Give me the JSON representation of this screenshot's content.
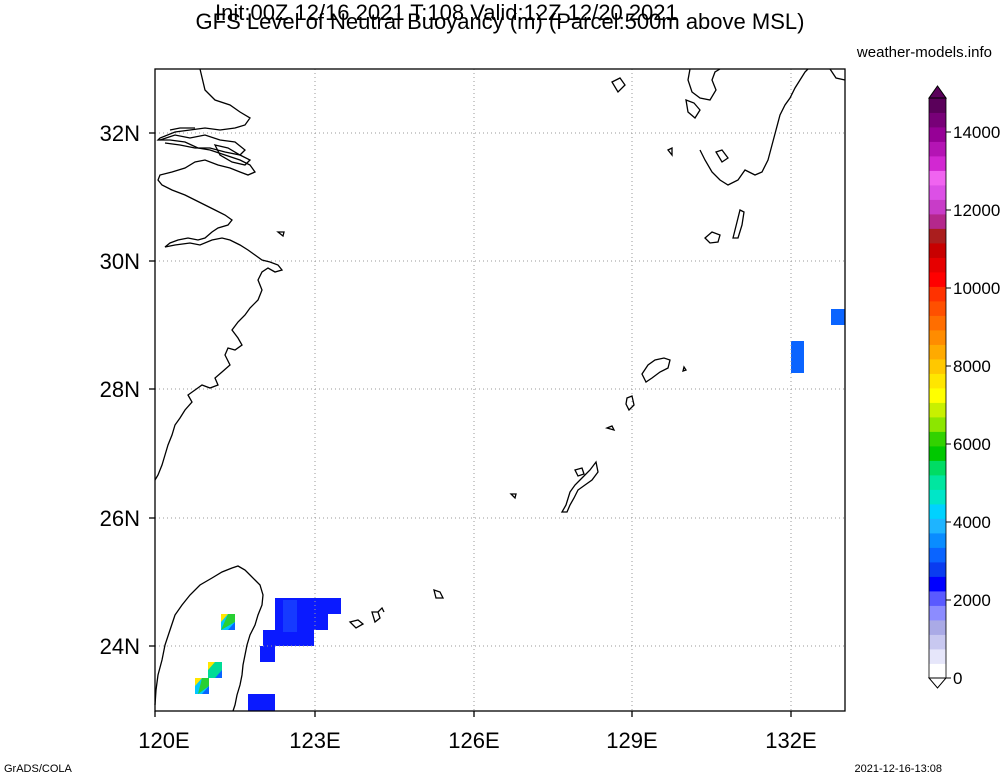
{
  "header": {
    "title_line1": "GFS Level of Neutral Buoyancy (m) (Parcel:500m above MSL)",
    "title_line2": "Init:00Z 12/16 2021 T:108 Valid:12Z 12/20 2021",
    "source": "weather-models.info"
  },
  "footer": {
    "left": "GrADS/COLA",
    "right": "2021-12-16-13:08"
  },
  "map": {
    "lon_range": [
      120,
      133
    ],
    "lat_range": [
      23,
      33
    ],
    "lon_ticks": [
      "120E",
      "123E",
      "126E",
      "129E",
      "132E"
    ],
    "lat_ticks": [
      "24N",
      "26N",
      "28N",
      "30N",
      "32N"
    ],
    "grid": true
  },
  "colorbar": {
    "labels": [
      "0",
      "2000",
      "4000",
      "6000",
      "8000",
      "10000",
      "12000",
      "14000"
    ],
    "colors": [
      "#ffffff",
      "#e6e6fa",
      "#c8c8f0",
      "#aaaae6",
      "#8c8cff",
      "#5a5aff",
      "#0000ff",
      "#0a3cf0",
      "#0a64ff",
      "#0a8cff",
      "#1eb4ff",
      "#00d2ff",
      "#00e6c8",
      "#00e6a0",
      "#00dc64",
      "#00c800",
      "#32d200",
      "#8ce600",
      "#c8f000",
      "#ffff00",
      "#ffe600",
      "#ffc800",
      "#ffaa00",
      "#ff8c00",
      "#ff6e00",
      "#ff5000",
      "#ff3200",
      "#ff0000",
      "#e60000",
      "#c80000",
      "#aa1e1e",
      "#b4288c",
      "#c83cc8",
      "#dc50e6",
      "#f064f0",
      "#d228d2",
      "#b414b4",
      "#960096",
      "#780078",
      "#5a005a"
    ]
  }
}
